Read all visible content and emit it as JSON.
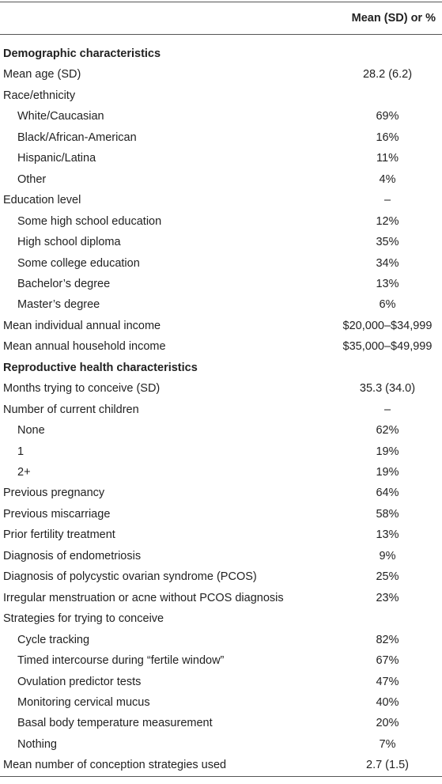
{
  "table": {
    "header": {
      "value_column": "Mean (SD) or %"
    },
    "rows": [
      {
        "section": "Demographic characteristics"
      },
      {
        "label": "Mean age (SD)",
        "value": "28.2 (6.2)",
        "indent": false
      },
      {
        "label": "Race/ethnicity",
        "indent": false
      },
      {
        "label": "White/Caucasian",
        "value": "69%",
        "indent": true
      },
      {
        "label": "Black/African-American",
        "value": "16%",
        "indent": true
      },
      {
        "label": "Hispanic/Latina",
        "value": "11%",
        "indent": true
      },
      {
        "label": "Other",
        "value": "4%",
        "indent": true
      },
      {
        "label": "Education level",
        "value": "–",
        "indent": false
      },
      {
        "label": "Some high school education",
        "value": "12%",
        "indent": true
      },
      {
        "label": "High school diploma",
        "value": "35%",
        "indent": true
      },
      {
        "label": "Some college education",
        "value": "34%",
        "indent": true
      },
      {
        "label": "Bachelor’s degree",
        "value": "13%",
        "indent": true
      },
      {
        "label": "Master’s degree",
        "value": "6%",
        "indent": true
      },
      {
        "label": "Mean individual annual income",
        "value": "$20,000–$34,999",
        "indent": false
      },
      {
        "label": "Mean annual household income",
        "value": "$35,000–$49,999",
        "indent": false
      },
      {
        "section": "Reproductive health characteristics"
      },
      {
        "label": "Months trying to conceive (SD)",
        "value": "35.3 (34.0)",
        "indent": false
      },
      {
        "label": "Number of current children",
        "value": "–",
        "indent": false
      },
      {
        "label": "None",
        "value": "62%",
        "indent": true
      },
      {
        "label": "1",
        "value": "19%",
        "indent": true
      },
      {
        "label": "2+",
        "value": "19%",
        "indent": true
      },
      {
        "label": "Previous pregnancy",
        "value": "64%",
        "indent": false
      },
      {
        "label": "Previous miscarriage",
        "value": "58%",
        "indent": false
      },
      {
        "label": "Prior fertility treatment",
        "value": "13%",
        "indent": false
      },
      {
        "label": "Diagnosis of endometriosis",
        "value": "9%",
        "indent": false
      },
      {
        "label": "Diagnosis of polycystic ovarian syndrome (PCOS)",
        "value": "25%",
        "indent": false
      },
      {
        "label": "Irregular menstruation or acne without PCOS diagnosis",
        "value": "23%",
        "indent": false
      },
      {
        "label": "Strategies for trying to conceive",
        "indent": false
      },
      {
        "label": "Cycle tracking",
        "value": "82%",
        "indent": true
      },
      {
        "label": "Timed intercourse during “fertile window”",
        "value": "67%",
        "indent": true
      },
      {
        "label": "Ovulation predictor tests",
        "value": "47%",
        "indent": true
      },
      {
        "label": "Monitoring cervical mucus",
        "value": "40%",
        "indent": true
      },
      {
        "label": "Basal body temperature measurement",
        "value": "20%",
        "indent": true
      },
      {
        "label": "Nothing",
        "value": "7%",
        "indent": true
      },
      {
        "label": "Mean number of conception strategies used",
        "value": "2.7 (1.5)",
        "indent": false
      }
    ]
  }
}
